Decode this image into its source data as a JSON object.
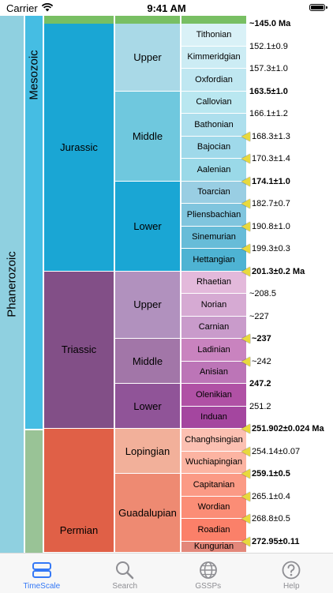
{
  "status": {
    "carrier": "Carrier",
    "time": "9:41 AM"
  },
  "eon": "Phanerozoic",
  "era": "Mesozoic",
  "periods": [
    {
      "name": "Jurassic",
      "color": "#1aa6d4"
    },
    {
      "name": "Triassic",
      "color": "#824f87"
    },
    {
      "name": "Permian",
      "color": "#e06047"
    }
  ],
  "epochs": [
    {
      "name": "Upper",
      "color": "#a9d9e7"
    },
    {
      "name": "Middle",
      "color": "#6fc8de"
    },
    {
      "name": "Lower",
      "color": "#1aa6d4"
    },
    {
      "name": "Upper",
      "color": "#b191be"
    },
    {
      "name": "Middle",
      "color": "#a276a8"
    },
    {
      "name": "Lower",
      "color": "#905498"
    },
    {
      "name": "Lopingian",
      "color": "#f2b09a"
    },
    {
      "name": "Guadalupian",
      "color": "#ee8a72"
    }
  ],
  "stages": [
    "Tithonian",
    "Kimmeridgian",
    "Oxfordian",
    "Callovian",
    "Bathonian",
    "Bajocian",
    "Aalenian",
    "Toarcian",
    "Pliensbachian",
    "Sinemurian",
    "Hettangian",
    "Rhaetian",
    "Norian",
    "Carnian",
    "Ladinian",
    "Anisian",
    "Olenikian",
    "Induan",
    "Changhsingian",
    "Wuchiapingian",
    "Capitanian",
    "Wordian",
    "Roadian",
    "Kungurian"
  ],
  "ages": [
    {
      "text": "~145.0 Ma",
      "bold": true,
      "gssp": false
    },
    {
      "text": "152.1±0.9",
      "bold": false,
      "gssp": false
    },
    {
      "text": "157.3±1.0",
      "bold": false,
      "gssp": false
    },
    {
      "text": "163.5±1.0",
      "bold": true,
      "gssp": false
    },
    {
      "text": "166.1±1.2",
      "bold": false,
      "gssp": false
    },
    {
      "text": "168.3±1.3",
      "bold": false,
      "gssp": true
    },
    {
      "text": "170.3±1.4",
      "bold": false,
      "gssp": true
    },
    {
      "text": "174.1±1.0",
      "bold": true,
      "gssp": true
    },
    {
      "text": "182.7±0.7",
      "bold": false,
      "gssp": true
    },
    {
      "text": "190.8±1.0",
      "bold": false,
      "gssp": true
    },
    {
      "text": "199.3±0.3",
      "bold": false,
      "gssp": true
    },
    {
      "text": "201.3±0.2 Ma",
      "bold": true,
      "gssp": true
    },
    {
      "text": "~208.5",
      "bold": false,
      "gssp": false
    },
    {
      "text": "~227",
      "bold": false,
      "gssp": false
    },
    {
      "text": "~237",
      "bold": true,
      "gssp": true
    },
    {
      "text": "~242",
      "bold": false,
      "gssp": true
    },
    {
      "text": "247.2",
      "bold": true,
      "gssp": false
    },
    {
      "text": "251.2",
      "bold": false,
      "gssp": false
    },
    {
      "text": "251.902±0.024 Ma",
      "bold": true,
      "gssp": true
    },
    {
      "text": "254.14±0.07",
      "bold": false,
      "gssp": true
    },
    {
      "text": "259.1±0.5",
      "bold": true,
      "gssp": true
    },
    {
      "text": "265.1±0.4",
      "bold": false,
      "gssp": true
    },
    {
      "text": "268.8±0.5",
      "bold": false,
      "gssp": true
    },
    {
      "text": "272.95±0.11",
      "bold": true,
      "gssp": true
    }
  ],
  "tabs": [
    {
      "label": "TimeScale",
      "icon": "timescale-icon",
      "active": true
    },
    {
      "label": "Search",
      "icon": "search-icon",
      "active": false
    },
    {
      "label": "GSSPs",
      "icon": "globe-icon",
      "active": false
    },
    {
      "label": "Help",
      "icon": "help-icon",
      "active": false
    }
  ]
}
